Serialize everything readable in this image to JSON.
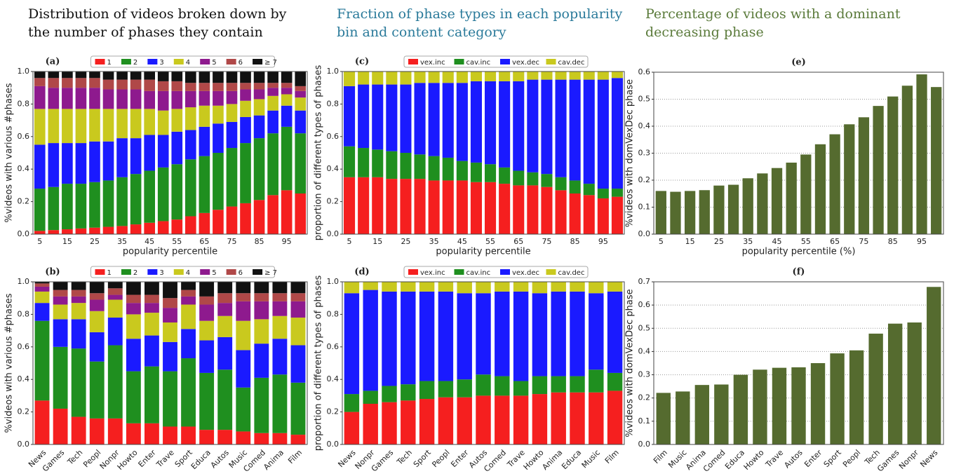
{
  "headings": [
    {
      "lines": [
        "Distribution of videos broken down by",
        "the number of phases they contain"
      ],
      "color": "#111111"
    },
    {
      "lines": [
        "Fraction of phase types in each popularity",
        "bin and content category"
      ],
      "color": "#2a7a9a"
    },
    {
      "lines": [
        "Percentage of videos with a dominant",
        "decreasing phase"
      ],
      "color": "#5a7a3a"
    }
  ],
  "chart_data": [
    {
      "type": "stacked_bar",
      "title": "(a)",
      "xlabel": "popularity percentile",
      "ylabel": "%videos with various #phases",
      "categories": [
        "5",
        null,
        "15",
        null,
        "25",
        null,
        "35",
        null,
        "45",
        null,
        "55",
        null,
        "65",
        null,
        "75",
        null,
        "85",
        null,
        "95",
        null
      ],
      "ylim": [
        0,
        1
      ],
      "yticks": [
        {
          "value": 0,
          "label": "0.0"
        },
        0.2,
        0.4,
        0.6,
        0.8,
        {
          "value": 1,
          "label": "1.0"
        }
      ],
      "series": [
        {
          "name": "1",
          "color": "#f51f1f",
          "values": [
            0.02,
            0.025,
            0.03,
            0.035,
            0.04,
            0.045,
            0.05,
            0.06,
            0.07,
            0.08,
            0.09,
            0.11,
            0.13,
            0.15,
            0.17,
            0.19,
            0.21,
            0.24,
            0.27,
            0.25
          ]
        },
        {
          "name": "2",
          "color": "#1f8f1f",
          "values": [
            0.26,
            0.265,
            0.28,
            0.275,
            0.28,
            0.285,
            0.3,
            0.31,
            0.32,
            0.33,
            0.34,
            0.35,
            0.35,
            0.35,
            0.36,
            0.37,
            0.38,
            0.38,
            0.39,
            0.37
          ]
        },
        {
          "name": "3",
          "color": "#1a1aff",
          "values": [
            0.27,
            0.27,
            0.25,
            0.25,
            0.25,
            0.24,
            0.24,
            0.22,
            0.22,
            0.2,
            0.2,
            0.18,
            0.18,
            0.18,
            0.16,
            0.16,
            0.14,
            0.14,
            0.13,
            0.14
          ]
        },
        {
          "name": "4",
          "color": "#c9c91e",
          "values": [
            0.22,
            0.21,
            0.21,
            0.21,
            0.2,
            0.2,
            0.18,
            0.18,
            0.16,
            0.15,
            0.14,
            0.14,
            0.13,
            0.11,
            0.11,
            0.1,
            0.1,
            0.09,
            0.07,
            0.08
          ]
        },
        {
          "name": "5",
          "color": "#8e1a8e",
          "values": [
            0.14,
            0.13,
            0.13,
            0.13,
            0.13,
            0.12,
            0.12,
            0.12,
            0.11,
            0.12,
            0.11,
            0.1,
            0.09,
            0.09,
            0.08,
            0.07,
            0.06,
            0.05,
            0.04,
            0.04
          ]
        },
        {
          "name": "6",
          "color": "#b04848",
          "values": [
            0.05,
            0.06,
            0.06,
            0.06,
            0.06,
            0.06,
            0.06,
            0.06,
            0.07,
            0.06,
            0.06,
            0.05,
            0.05,
            0.05,
            0.05,
            0.04,
            0.04,
            0.03,
            0.03,
            0.03
          ]
        },
        {
          "name": "≥ 7",
          "color": "#111111",
          "values": [
            0.04,
            0.04,
            0.04,
            0.04,
            0.04,
            0.05,
            0.05,
            0.05,
            0.05,
            0.06,
            0.06,
            0.07,
            0.07,
            0.07,
            0.07,
            0.07,
            0.07,
            0.07,
            0.07,
            0.09
          ]
        }
      ]
    },
    {
      "type": "stacked_bar",
      "title": "(b)",
      "ylabel": "%videos with various #phases",
      "categories": [
        "News",
        "Games",
        "Tech",
        "Peopl",
        "Nonpr",
        "Howto",
        "Enter",
        "Trave",
        "Sport",
        "Educa",
        "Autos",
        "Music",
        "Comed",
        "Anima",
        "Film"
      ],
      "ylim": [
        0,
        1
      ],
      "yticks": [
        {
          "value": 0,
          "label": "0.0"
        },
        0.2,
        0.4,
        0.6,
        0.8,
        {
          "value": 1,
          "label": "1.0"
        }
      ],
      "series": [
        {
          "name": "1",
          "color": "#f51f1f",
          "values": [
            0.27,
            0.22,
            0.17,
            0.16,
            0.16,
            0.13,
            0.13,
            0.11,
            0.11,
            0.09,
            0.09,
            0.08,
            0.07,
            0.07,
            0.06
          ]
        },
        {
          "name": "2",
          "color": "#1f8f1f",
          "values": [
            0.49,
            0.38,
            0.42,
            0.35,
            0.45,
            0.32,
            0.35,
            0.34,
            0.42,
            0.35,
            0.37,
            0.27,
            0.34,
            0.36,
            0.32
          ]
        },
        {
          "name": "3",
          "color": "#1a1aff",
          "values": [
            0.11,
            0.17,
            0.18,
            0.18,
            0.17,
            0.2,
            0.19,
            0.18,
            0.18,
            0.2,
            0.2,
            0.23,
            0.21,
            0.22,
            0.23
          ]
        },
        {
          "name": "4",
          "color": "#c9c91e",
          "values": [
            0.07,
            0.09,
            0.1,
            0.13,
            0.11,
            0.15,
            0.14,
            0.12,
            0.15,
            0.12,
            0.13,
            0.18,
            0.15,
            0.14,
            0.17
          ]
        },
        {
          "name": "5",
          "color": "#8e1a8e",
          "values": [
            0.03,
            0.05,
            0.04,
            0.07,
            0.03,
            0.07,
            0.06,
            0.09,
            0.05,
            0.1,
            0.08,
            0.12,
            0.11,
            0.09,
            0.1
          ]
        },
        {
          "name": "6",
          "color": "#b04848",
          "values": [
            0.02,
            0.04,
            0.04,
            0.04,
            0.04,
            0.05,
            0.05,
            0.06,
            0.04,
            0.05,
            0.06,
            0.05,
            0.05,
            0.05,
            0.05
          ]
        },
        {
          "name": "≥ 7",
          "color": "#111111",
          "values": [
            0.01,
            0.05,
            0.05,
            0.07,
            0.04,
            0.08,
            0.08,
            0.1,
            0.05,
            0.09,
            0.07,
            0.07,
            0.07,
            0.07,
            0.07
          ]
        }
      ]
    },
    {
      "type": "stacked_bar",
      "title": "(c)",
      "xlabel": "popularity percentile",
      "ylabel": "proportion of different types of phases",
      "categories": [
        "5",
        null,
        "15",
        null,
        "25",
        null,
        "35",
        null,
        "45",
        null,
        "55",
        null,
        "65",
        null,
        "75",
        null,
        "85",
        null,
        "95",
        null
      ],
      "ylim": [
        0,
        1
      ],
      "yticks": [
        {
          "value": 0,
          "label": "0.0"
        },
        0.2,
        0.4,
        0.6,
        0.8,
        {
          "value": 1,
          "label": "1.0"
        }
      ],
      "series": [
        {
          "name": "vex.inc",
          "color": "#f51f1f",
          "values": [
            0.35,
            0.35,
            0.35,
            0.34,
            0.34,
            0.34,
            0.33,
            0.33,
            0.33,
            0.32,
            0.32,
            0.31,
            0.3,
            0.3,
            0.29,
            0.27,
            0.25,
            0.24,
            0.22,
            0.23
          ]
        },
        {
          "name": "cav.inc",
          "color": "#1f8f1f",
          "values": [
            0.19,
            0.18,
            0.17,
            0.17,
            0.16,
            0.15,
            0.15,
            0.14,
            0.12,
            0.12,
            0.11,
            0.1,
            0.09,
            0.08,
            0.08,
            0.08,
            0.08,
            0.07,
            0.06,
            0.05
          ]
        },
        {
          "name": "vex.dec",
          "color": "#1a1aff",
          "values": [
            0.37,
            0.39,
            0.4,
            0.41,
            0.42,
            0.44,
            0.45,
            0.46,
            0.48,
            0.5,
            0.51,
            0.53,
            0.55,
            0.57,
            0.58,
            0.6,
            0.62,
            0.64,
            0.67,
            0.68
          ]
        },
        {
          "name": "cav.dec",
          "color": "#c9c91e",
          "values": [
            0.09,
            0.08,
            0.08,
            0.08,
            0.08,
            0.07,
            0.07,
            0.07,
            0.07,
            0.06,
            0.06,
            0.06,
            0.06,
            0.05,
            0.05,
            0.05,
            0.05,
            0.05,
            0.05,
            0.04
          ]
        }
      ]
    },
    {
      "type": "stacked_bar",
      "title": "(d)",
      "ylabel": "proportion of different types of phases",
      "categories": [
        "News",
        "Nonpr",
        "Games",
        "Tech",
        "Sport",
        "Peopl",
        "Enter",
        "Autos",
        "Comed",
        "Trave",
        "Howto",
        "Anima",
        "Educa",
        "Music",
        "Film"
      ],
      "ylim": [
        0,
        1
      ],
      "yticks": [
        {
          "value": 0,
          "label": "0.0"
        },
        0.2,
        0.4,
        0.6,
        0.8,
        {
          "value": 1,
          "label": "1.0"
        }
      ],
      "series": [
        {
          "name": "vex.inc",
          "color": "#f51f1f",
          "values": [
            0.2,
            0.25,
            0.26,
            0.27,
            0.28,
            0.29,
            0.29,
            0.3,
            0.3,
            0.3,
            0.31,
            0.32,
            0.32,
            0.32,
            0.33
          ]
        },
        {
          "name": "cav.inc",
          "color": "#1f8f1f",
          "values": [
            0.11,
            0.08,
            0.1,
            0.1,
            0.11,
            0.1,
            0.11,
            0.13,
            0.12,
            0.09,
            0.11,
            0.1,
            0.1,
            0.14,
            0.11
          ]
        },
        {
          "name": "vex.dec",
          "color": "#1a1aff",
          "values": [
            0.62,
            0.62,
            0.58,
            0.57,
            0.55,
            0.55,
            0.53,
            0.5,
            0.52,
            0.55,
            0.51,
            0.52,
            0.52,
            0.47,
            0.5
          ]
        },
        {
          "name": "cav.dec",
          "color": "#c9c91e",
          "values": [
            0.07,
            0.05,
            0.06,
            0.06,
            0.06,
            0.06,
            0.07,
            0.07,
            0.06,
            0.06,
            0.07,
            0.06,
            0.06,
            0.07,
            0.06
          ]
        }
      ]
    },
    {
      "type": "bar",
      "title": "(e)",
      "xlabel": "popularity percentile (%)",
      "ylabel": "%videos with domVexDec phase",
      "color": "#556b2f",
      "grid": true,
      "categories": [
        "5",
        null,
        "15",
        null,
        "25",
        null,
        "35",
        null,
        "45",
        null,
        "55",
        null,
        "65",
        null,
        "75",
        null,
        "85",
        null,
        "95",
        null
      ],
      "values": [
        0.16,
        0.157,
        0.16,
        0.163,
        0.18,
        0.183,
        0.207,
        0.225,
        0.245,
        0.265,
        0.295,
        0.333,
        0.37,
        0.407,
        0.433,
        0.475,
        0.51,
        0.55,
        0.592,
        0.545
      ],
      "ylim": [
        0,
        0.6
      ],
      "yticks": [
        {
          "value": 0,
          "label": "0.0"
        },
        0.1,
        0.2,
        0.3,
        0.4,
        0.5,
        0.6
      ]
    },
    {
      "type": "bar",
      "title": "(f)",
      "ylabel": "%videos with domVexDec phase",
      "color": "#556b2f",
      "grid": true,
      "categories": [
        "Film",
        "Music",
        "Anima",
        "Comed",
        "Educa",
        "Howto",
        "Trave",
        "Autos",
        "Enter",
        "Sport",
        "Peopl",
        "Tech",
        "Games",
        "Nonpr",
        "News"
      ],
      "values": [
        0.222,
        0.228,
        0.256,
        0.258,
        0.3,
        0.322,
        0.33,
        0.332,
        0.35,
        0.392,
        0.405,
        0.477,
        0.52,
        0.525,
        0.678
      ],
      "ylim": [
        0,
        0.7
      ],
      "yticks": [
        {
          "value": 0,
          "label": "0.0"
        },
        0.1,
        0.2,
        0.3,
        0.4,
        0.5,
        0.6,
        0.7
      ]
    }
  ]
}
